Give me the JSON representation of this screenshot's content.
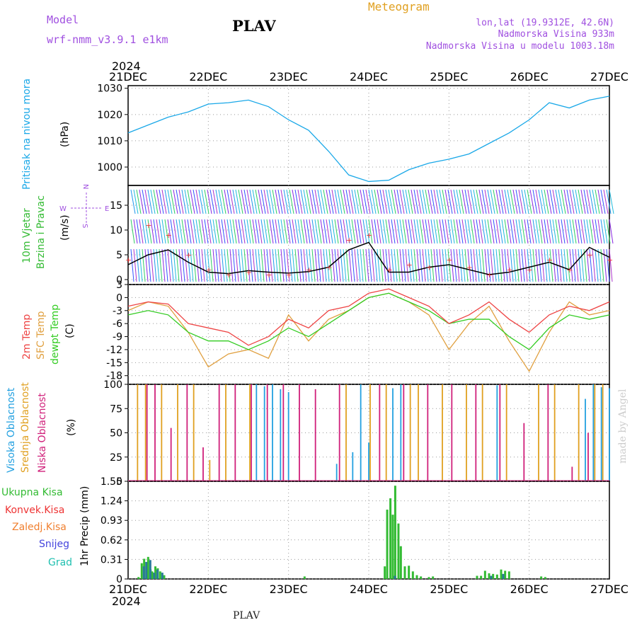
{
  "header": {
    "model_label": "Model",
    "model_name": "wrf-nmm_v3.9.1 e1km",
    "station": "PLAV",
    "meteogram_label": "Meteogram",
    "lonlat": "lon,lat (19.9312E, 42.6N)",
    "elevation": "Nadmorska Visina 933m",
    "model_elevation": "Nadmorska Visina u modelu 1003.18m",
    "footer_station": "PLAV",
    "credit": "made by Angel"
  },
  "time_axis": {
    "year_label": "2024",
    "ticks": [
      "21DEC",
      "22DEC",
      "23DEC",
      "24DEC",
      "25DEC",
      "26DEC",
      "27DEC"
    ]
  },
  "colors": {
    "pressure": "#1aa8e8",
    "temp2m": "#ee4444",
    "sfc_temp": "#e0a040",
    "dewpoint": "#33cc22",
    "cloud_high": "#22a0e0",
    "cloud_mid": "#e0a020",
    "cloud_low": "#d0207a",
    "precip_total": "#33bb33",
    "precip_conv": "#ee3333",
    "precip_frozen": "#f08030",
    "snow": "#4444dd",
    "graupel": "#20c0b0",
    "grid": "#999999"
  },
  "chart_data": [
    {
      "type": "line",
      "panel": "pressure",
      "ylabel": "Pritisak na nivou mora",
      "unit": "(hPa)",
      "yticks": [
        "1000",
        "1010",
        "1020",
        "1030"
      ],
      "ylim": [
        993,
        1031
      ],
      "x": [
        0,
        0.25,
        0.5,
        0.75,
        1.0,
        1.25,
        1.5,
        1.75,
        2.0,
        2.25,
        2.5,
        2.75,
        3.0,
        3.25,
        3.5,
        3.75,
        4.0,
        4.25,
        4.5,
        4.75,
        5.0,
        5.25,
        5.5,
        5.75,
        6.0
      ],
      "series": [
        {
          "values": [
            1013,
            1016,
            1019,
            1021,
            1024,
            1024.5,
            1025.5,
            1023,
            1018,
            1014,
            1006,
            997,
            994.5,
            995,
            999,
            1001.5,
            1003,
            1005,
            1009,
            1013,
            1018,
            1024.5,
            1022.5,
            1025.5,
            1027
          ]
        }
      ]
    },
    {
      "type": "line",
      "panel": "wind",
      "ylabel": "10m Vjetar Brzina i Pravac",
      "unit": "(m/s)",
      "compass": [
        "N",
        "E",
        "S",
        "W"
      ],
      "yticks": [
        "0",
        "5",
        "10",
        "15"
      ],
      "ylim": [
        -1,
        19
      ],
      "x": [
        0,
        0.25,
        0.5,
        0.75,
        1.0,
        1.25,
        1.5,
        1.75,
        2.0,
        2.25,
        2.5,
        2.75,
        3.0,
        3.25,
        3.5,
        3.75,
        4.0,
        4.25,
        4.5,
        4.75,
        5.0,
        5.25,
        5.5,
        5.75,
        6.0
      ],
      "series": [
        {
          "name": "speed",
          "values": [
            3,
            5,
            6,
            3.5,
            1.5,
            1.2,
            1.8,
            1.5,
            1.3,
            1.6,
            2.5,
            6,
            7.5,
            1.5,
            1.5,
            2.5,
            3,
            2,
            1,
            1.5,
            2.5,
            3.5,
            2,
            6.5,
            4.5
          ]
        },
        {
          "name": "gust",
          "values": [
            4,
            11,
            9,
            5,
            2,
            1,
            1.5,
            1,
            1,
            2,
            2.5,
            8,
            9,
            2,
            3,
            2.5,
            4,
            2.5,
            1,
            2,
            2,
            4,
            2,
            5,
            4
          ]
        }
      ]
    },
    {
      "type": "line",
      "panel": "temperature",
      "ylabel": [
        "2m Temp",
        "SFC Temp",
        "dewpt Temp"
      ],
      "unit": "(C)",
      "yticks": [
        "3",
        "0",
        "-3",
        "-6",
        "-9",
        "-12",
        "-15",
        "-18"
      ],
      "ylim": [
        -20,
        3
      ],
      "x": [
        0,
        0.25,
        0.5,
        0.75,
        1.0,
        1.25,
        1.5,
        1.75,
        2.0,
        2.25,
        2.5,
        2.75,
        3.0,
        3.25,
        3.5,
        3.75,
        4.0,
        4.25,
        4.5,
        4.75,
        5.0,
        5.25,
        5.5,
        5.75,
        6.0
      ],
      "series": [
        {
          "name": "2m Temp",
          "values": [
            -2,
            -1,
            -1.5,
            -6,
            -7,
            -8,
            -11,
            -9,
            -5,
            -7,
            -3,
            -2,
            1,
            2,
            0,
            -2,
            -6,
            -4,
            -1,
            -5,
            -8,
            -4,
            -2,
            -3,
            -1
          ]
        },
        {
          "name": "SFC Temp",
          "values": [
            -3,
            -1,
            -2,
            -8,
            -16,
            -13,
            -12,
            -14,
            -4,
            -10,
            -5,
            -3,
            0,
            1,
            -1,
            -4,
            -12,
            -6,
            -2,
            -10,
            -17,
            -8,
            -1,
            -4,
            -3
          ]
        },
        {
          "name": "dewpt Temp",
          "values": [
            -4,
            -3,
            -4,
            -8,
            -10,
            -10,
            -12,
            -10,
            -7,
            -9,
            -6,
            -3,
            0,
            1,
            -1,
            -3,
            -6,
            -5,
            -5,
            -9,
            -12,
            -7,
            -4,
            -5,
            -4
          ]
        }
      ]
    },
    {
      "type": "bar",
      "panel": "clouds",
      "ylabel": [
        "Visoka Oblacnost",
        "Srednja Oblacnost",
        "Niska Oblacnost"
      ],
      "unit": "(%)",
      "yticks": [
        "0",
        "25",
        "50",
        "75",
        "100"
      ],
      "ylim": [
        0,
        100
      ],
      "series": [
        {
          "name": "Visoka Oblacnost",
          "x": [
            1.6,
            1.7,
            1.8,
            1.9,
            2.0,
            2.6,
            2.8,
            2.9,
            3.0,
            3.3,
            3.4,
            4.6,
            5.7,
            5.8,
            5.9,
            6.0
          ],
          "values": [
            100,
            98,
            100,
            95,
            92,
            18,
            30,
            100,
            40,
            96,
            100,
            99,
            85,
            100,
            97,
            96
          ]
        },
        {
          "name": "Srednja Oblacnost",
          "x": [
            0.1,
            0.2,
            0.4,
            0.6,
            0.8,
            1.0,
            1.2,
            1.5,
            2.7,
            3.0,
            3.2,
            3.5,
            3.6,
            3.9,
            4.2,
            4.4,
            4.7,
            5.1,
            5.3,
            5.6,
            5.8,
            5.9
          ],
          "values": [
            100,
            100,
            100,
            100,
            100,
            22,
            100,
            100,
            100,
            100,
            100,
            100,
            100,
            100,
            100,
            100,
            100,
            100,
            100,
            100,
            100,
            100
          ]
        },
        {
          "name": "Niska Oblacnost",
          "x": [
            0.2,
            0.3,
            0.5,
            0.7,
            0.9,
            1.1,
            1.3,
            1.5,
            1.7,
            1.9,
            2.1,
            2.3,
            2.6,
            3.1,
            3.4,
            3.7,
            4.0,
            4.3,
            4.6,
            4.9,
            5.2,
            5.5,
            5.7
          ],
          "values": [
            100,
            100,
            55,
            100,
            35,
            100,
            100,
            100,
            100,
            100,
            100,
            95,
            100,
            100,
            100,
            100,
            100,
            100,
            100,
            60,
            100,
            15,
            50
          ]
        }
      ]
    },
    {
      "type": "bar",
      "panel": "precipitation",
      "ylabel": "1hr Precip (mm)",
      "legend": [
        "Ukupna Kisa",
        "Konvek.Kisa",
        "Zaledj.Kisa",
        "Snijeg",
        "Grad"
      ],
      "yticks": [
        "0",
        "0.31",
        "0.62",
        "0.93",
        "1.24",
        "1.55"
      ],
      "ylim": [
        0,
        1.55
      ],
      "series": [
        {
          "name": "Ukupna Kisa",
          "x": [
            0.13,
            0.17,
            0.2,
            0.25,
            0.28,
            0.3,
            0.34,
            0.37,
            0.4,
            0.45,
            2.2,
            3.2,
            3.23,
            3.27,
            3.3,
            3.33,
            3.37,
            3.4,
            3.45,
            3.5,
            3.55,
            3.6,
            3.65,
            3.75,
            3.8,
            4.35,
            4.4,
            4.45,
            4.5,
            4.55,
            4.6,
            4.65,
            4.7,
            4.75,
            5.15,
            5.2
          ],
          "values": [
            0.03,
            0.25,
            0.32,
            0.35,
            0.15,
            0.12,
            0.2,
            0.17,
            0.12,
            0.06,
            0.04,
            0.2,
            1.1,
            1.28,
            1.02,
            1.48,
            0.88,
            0.52,
            0.2,
            0.21,
            0.12,
            0.06,
            0.04,
            0.03,
            0.04,
            0.05,
            0.05,
            0.13,
            0.09,
            0.08,
            0.07,
            0.15,
            0.13,
            0.12,
            0.04,
            0.03
          ]
        },
        {
          "name": "Snijeg",
          "x": [
            0.17,
            0.2,
            0.25,
            0.3,
            0.34,
            0.4,
            3.3,
            4.5,
            4.65
          ],
          "values": [
            0.2,
            0.27,
            0.3,
            0.1,
            0.15,
            0.1,
            0.05,
            0.05,
            0.08
          ]
        }
      ]
    }
  ]
}
